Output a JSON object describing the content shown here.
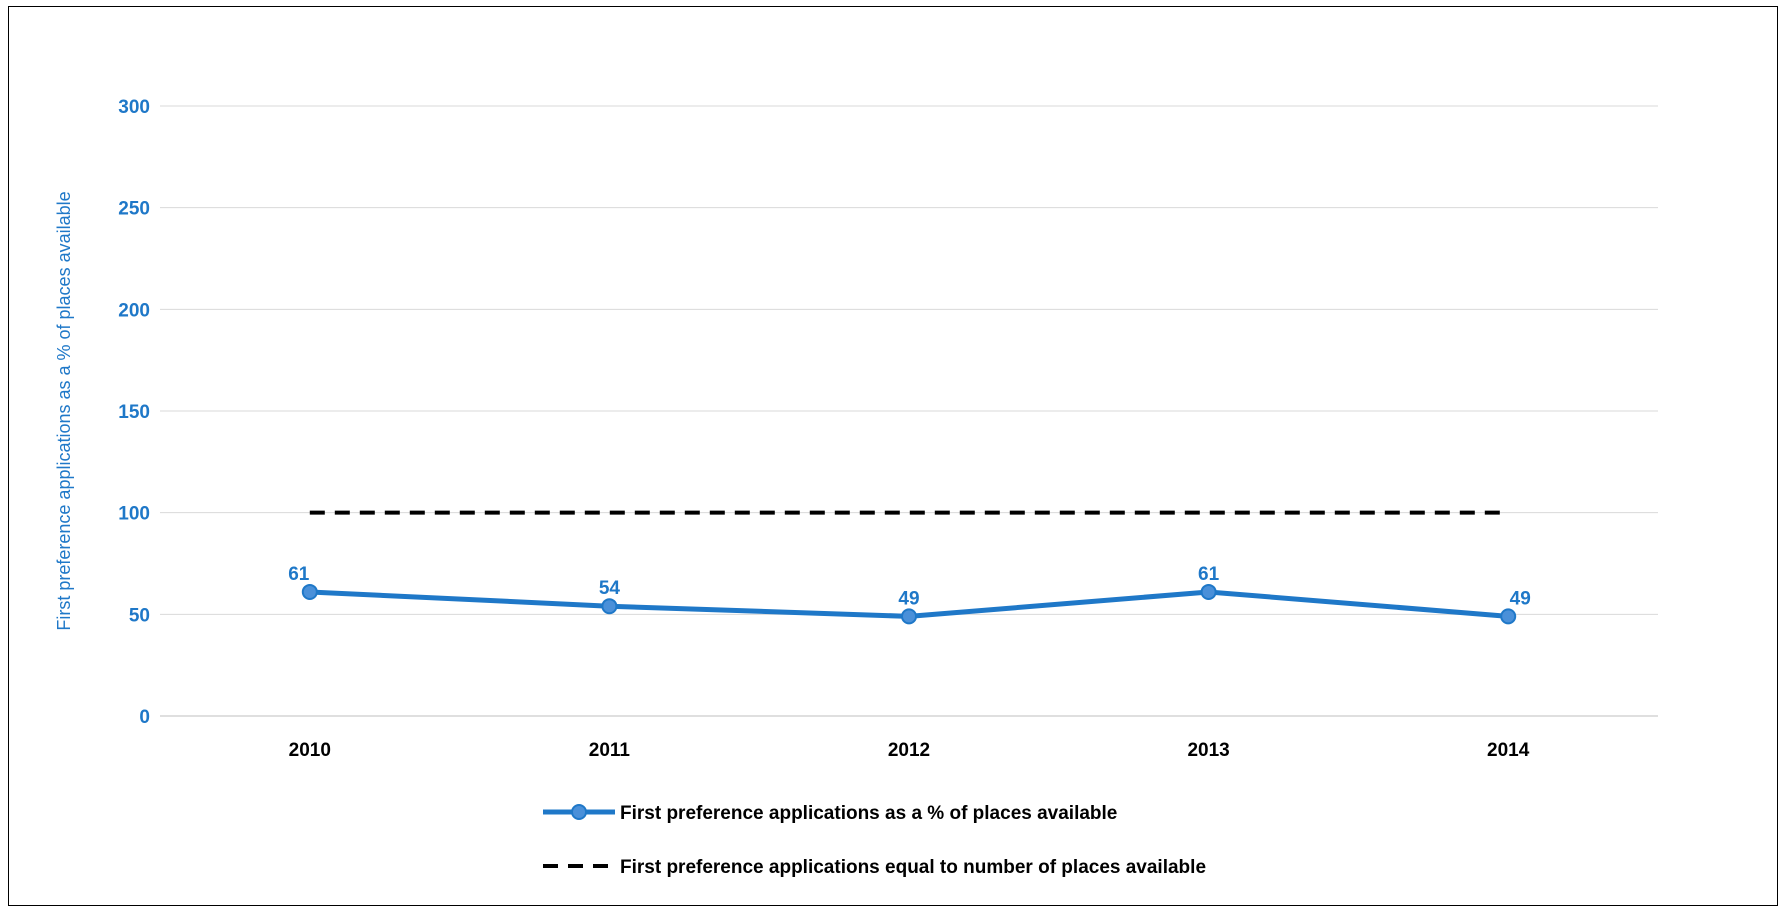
{
  "chart_data": {
    "type": "line",
    "categories": [
      "2010",
      "2011",
      "2012",
      "2013",
      "2014"
    ],
    "series": [
      {
        "name": "First preference applications as a % of places available",
        "values": [
          61,
          54,
          49,
          61,
          49
        ],
        "color": "#1f78c8",
        "style": "solid-with-markers",
        "data_labels": [
          "61",
          "54",
          "49",
          "61",
          "49"
        ]
      },
      {
        "name": "First preference applications equal to number of places available",
        "values": [
          100,
          100,
          100,
          100,
          100
        ],
        "color": "#000000",
        "style": "dashed"
      }
    ],
    "ylabel": "First preference applications as a % of places available",
    "xlabel": "",
    "ylim": [
      0,
      300
    ],
    "yticks": [
      "0",
      "50",
      "100",
      "150",
      "200",
      "250",
      "300"
    ],
    "grid": true,
    "legend_position": "bottom"
  }
}
